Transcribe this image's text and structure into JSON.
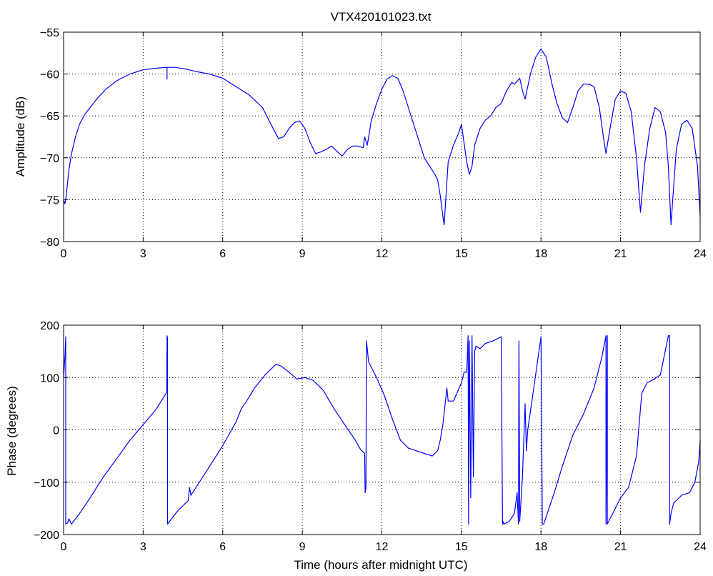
{
  "chart_data": [
    {
      "type": "line",
      "title": "VTX420101023.txt",
      "xlabel": "",
      "ylabel": "Amplitude (dB)",
      "xlim": [
        0,
        24
      ],
      "ylim": [
        -80,
        -55
      ],
      "xticks": [
        "0",
        "3",
        "6",
        "9",
        "12",
        "15",
        "18",
        "21",
        "24"
      ],
      "yticks": [
        "-55",
        "-60",
        "-65",
        "-70",
        "-75",
        "-80"
      ],
      "grid": true,
      "series": [
        {
          "color": "#0000ff",
          "x": [
            0.0,
            0.05,
            0.1,
            0.2,
            0.3,
            0.45,
            0.6,
            0.8,
            1.0,
            1.3,
            1.6,
            2.0,
            2.5,
            3.0,
            3.5,
            3.9,
            3.9,
            3.9,
            4.2,
            4.6,
            5.0,
            5.5,
            6.0,
            6.5,
            7.0,
            7.5,
            7.9,
            8.1,
            8.3,
            8.5,
            8.7,
            8.9,
            9.1,
            9.3,
            9.5,
            9.7,
            9.9,
            10.1,
            10.3,
            10.5,
            10.7,
            10.9,
            11.1,
            11.3,
            11.35,
            11.45,
            11.6,
            11.8,
            12.0,
            12.2,
            12.4,
            12.6,
            12.8,
            13.0,
            13.2,
            13.4,
            13.6,
            13.8,
            14.0,
            14.1,
            14.2,
            14.3,
            14.35,
            14.5,
            14.7,
            14.9,
            15.0,
            15.2,
            15.3,
            15.4,
            15.5,
            15.7,
            15.9,
            16.1,
            16.3,
            16.5,
            16.7,
            16.9,
            17.0,
            17.2,
            17.3,
            17.4,
            17.6,
            17.8,
            18.0,
            18.2,
            18.4,
            18.6,
            18.8,
            19.0,
            19.2,
            19.4,
            19.6,
            19.8,
            20.0,
            20.2,
            20.35,
            20.45,
            20.6,
            20.8,
            21.0,
            21.2,
            21.4,
            21.6,
            21.75,
            21.9,
            22.1,
            22.3,
            22.5,
            22.7,
            22.8,
            22.9,
            23.1,
            23.3,
            23.5,
            23.7,
            23.9,
            24.0
          ],
          "y": [
            -75.0,
            -75.5,
            -74.5,
            -71.5,
            -69.5,
            -67.5,
            -66.0,
            -64.8,
            -64.0,
            -62.8,
            -61.8,
            -60.8,
            -60.0,
            -59.5,
            -59.3,
            -59.2,
            -60.6,
            -59.2,
            -59.2,
            -59.4,
            -59.7,
            -60.0,
            -60.5,
            -61.5,
            -62.5,
            -64.0,
            -66.5,
            -67.7,
            -67.5,
            -66.5,
            -65.8,
            -65.6,
            -66.5,
            -68.2,
            -69.5,
            -69.3,
            -69.0,
            -68.6,
            -69.2,
            -69.8,
            -69.0,
            -68.6,
            -68.6,
            -68.8,
            -67.5,
            -68.5,
            -65.6,
            -63.5,
            -61.8,
            -60.6,
            -60.2,
            -60.5,
            -62.0,
            -64.0,
            -66.0,
            -68.0,
            -70.0,
            -71.0,
            -72.0,
            -72.6,
            -74.5,
            -77.0,
            -78.0,
            -70.5,
            -68.5,
            -67.0,
            -66.0,
            -70.5,
            -72.0,
            -71.0,
            -68.5,
            -66.5,
            -65.5,
            -65.0,
            -64.0,
            -63.5,
            -62.0,
            -61.0,
            -61.2,
            -60.5,
            -62.0,
            -63.0,
            -60.0,
            -58.0,
            -57.0,
            -58.0,
            -61.0,
            -63.5,
            -65.2,
            -65.8,
            -64.0,
            -62.0,
            -61.2,
            -61.2,
            -61.5,
            -64.0,
            -67.5,
            -69.5,
            -66.5,
            -63.0,
            -62.0,
            -62.3,
            -64.5,
            -70.0,
            -76.5,
            -71.0,
            -66.5,
            -64.0,
            -64.5,
            -67.0,
            -71.0,
            -78.0,
            -69.0,
            -66.0,
            -65.5,
            -66.5,
            -71.0,
            -77.0
          ]
        }
      ]
    },
    {
      "type": "line",
      "title": "",
      "xlabel": "Time (hours after midnight UTC)",
      "ylabel": "Phase (degrees)",
      "xlim": [
        0,
        24
      ],
      "ylim": [
        -200,
        200
      ],
      "xticks": [
        "0",
        "3",
        "6",
        "9",
        "12",
        "15",
        "18",
        "21",
        "24"
      ],
      "yticks": [
        "200",
        "100",
        "0",
        "-100",
        "-200"
      ],
      "grid": true,
      "series": [
        {
          "color": "#0000ff",
          "x": [
            0.0,
            0.05,
            0.08,
            0.08,
            0.15,
            0.2,
            0.25,
            0.3,
            0.6,
            1.0,
            1.5,
            2.0,
            2.5,
            3.0,
            3.5,
            3.89,
            3.89,
            3.9,
            3.92,
            3.92,
            4.3,
            4.7,
            4.75,
            4.8,
            5.5,
            6.0,
            6.5,
            6.7,
            6.9,
            7.2,
            7.6,
            8.0,
            8.2,
            8.5,
            8.8,
            9.1,
            9.4,
            9.8,
            10.2,
            10.6,
            11.0,
            11.2,
            11.35,
            11.37,
            11.4,
            11.42,
            11.5,
            11.8,
            12.1,
            12.4,
            12.7,
            13.0,
            13.3,
            13.6,
            13.9,
            14.1,
            14.2,
            14.3,
            14.45,
            14.5,
            14.7,
            15.0,
            15.1,
            15.2,
            15.25,
            15.27,
            15.3,
            15.35,
            15.4,
            15.45,
            15.5,
            15.55,
            15.7,
            15.9,
            16.2,
            16.5,
            16.55,
            16.57,
            16.6,
            16.8,
            17.0,
            17.1,
            17.15,
            17.17,
            17.2,
            17.3,
            17.4,
            17.45,
            17.5,
            17.7,
            18.0,
            18.05,
            18.1,
            18.2,
            18.5,
            18.8,
            19.2,
            19.6,
            20.0,
            20.3,
            20.45,
            20.45,
            20.5,
            20.5,
            20.6,
            20.8,
            21.0,
            21.3,
            21.6,
            21.8,
            22.0,
            22.2,
            22.5,
            22.8,
            22.85,
            22.85,
            22.9,
            23.0,
            23.3,
            23.6,
            23.8,
            23.95,
            24.0
          ],
          "y": [
            100,
            140,
            178,
            -180,
            -178,
            -170,
            -175,
            -180,
            -160,
            -130,
            -90,
            -55,
            -20,
            10,
            40,
            72,
            75,
            180,
            175,
            -180,
            -155,
            -135,
            -110,
            -125,
            -70,
            -30,
            15,
            40,
            55,
            80,
            105,
            125,
            122,
            110,
            97,
            100,
            95,
            75,
            40,
            10,
            -20,
            -38,
            -45,
            -120,
            -110,
            170,
            130,
            100,
            65,
            20,
            -20,
            -35,
            -40,
            -45,
            -50,
            -40,
            -20,
            10,
            80,
            55,
            55,
            90,
            110,
            110,
            180,
            -180,
            170,
            -130,
            180,
            -90,
            150,
            160,
            155,
            165,
            170,
            178,
            -180,
            -175,
            -180,
            -175,
            -160,
            -120,
            -180,
            170,
            -175,
            -90,
            50,
            -40,
            0,
            70,
            178,
            -180,
            -180,
            -165,
            -120,
            -70,
            -10,
            30,
            80,
            140,
            180,
            -180,
            180,
            -180,
            -170,
            -150,
            -130,
            -110,
            -50,
            70,
            90,
            95,
            105,
            180,
            180,
            -180,
            -160,
            -140,
            -125,
            -120,
            -100,
            -60,
            -20
          ]
        }
      ]
    }
  ]
}
